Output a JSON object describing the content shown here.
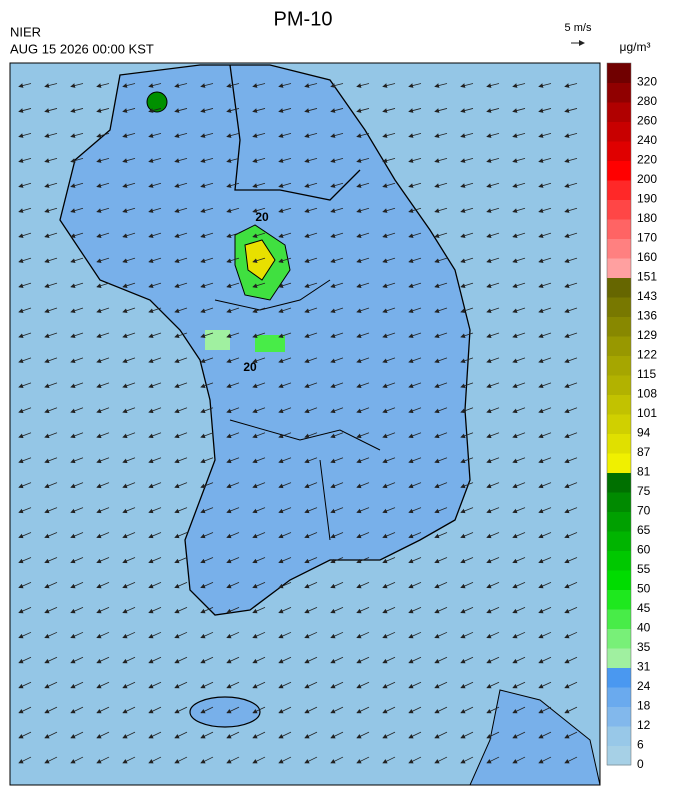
{
  "header": {
    "title": "PM-10",
    "agency": "NIER",
    "timestamp": "AUG 15 2026 00:00 KST",
    "wind_scale": "5 m/s",
    "unit": "μg/m³"
  },
  "legend": {
    "levels": [
      0,
      6,
      12,
      18,
      24,
      31,
      35,
      40,
      45,
      50,
      55,
      60,
      65,
      70,
      75,
      81,
      87,
      94,
      101,
      108,
      115,
      122,
      129,
      136,
      143,
      151,
      160,
      170,
      180,
      190,
      200,
      220,
      240,
      260,
      280,
      320
    ],
    "colors": [
      "#a6d0e6",
      "#98c8e8",
      "#82b8ec",
      "#6aaaee",
      "#4a98f0",
      "#a0f0a0",
      "#78f078",
      "#48ec48",
      "#1ee81e",
      "#00dc00",
      "#00c800",
      "#00b400",
      "#00a000",
      "#008a00",
      "#007000",
      "#f0f000",
      "#e0e000",
      "#d0d000",
      "#c2c200",
      "#b2b200",
      "#a6a600",
      "#989800",
      "#888800",
      "#787800",
      "#666600",
      "#ffa0a0",
      "#ff8080",
      "#ff6464",
      "#ff4646",
      "#ff2828",
      "#ff0000",
      "#e00000",
      "#c80000",
      "#b00000",
      "#900000",
      "#700000"
    ]
  },
  "map": {
    "contour_labels": [
      "20",
      "20"
    ]
  }
}
